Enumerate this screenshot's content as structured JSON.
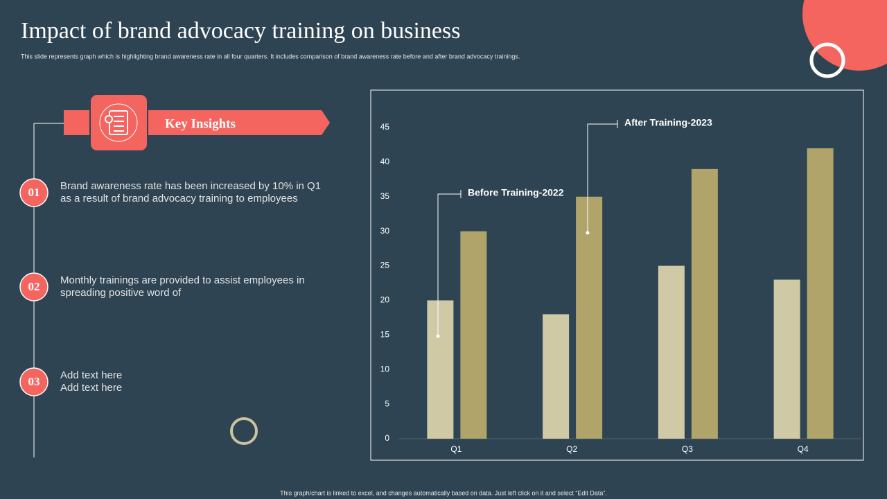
{
  "header": {
    "title": "Impact of brand advocacy training on business",
    "subtitle": "This slide represents graph which is highlighting brand awareness rate in all four quarters. It includes comparison of brand awareness rate before and after brand advocacy trainings."
  },
  "insights": {
    "heading": "Key Insights",
    "items": [
      {
        "number": "01",
        "lines": [
          "Brand awareness rate has been increased by 10% in Q1",
          "as a result of brand advocacy training to employees"
        ]
      },
      {
        "number": "02",
        "lines": [
          "Monthly trainings are provided to assist employees in",
          "spreading positive word of"
        ]
      },
      {
        "number": "03",
        "lines": [
          "Add text here",
          "Add text here"
        ]
      }
    ]
  },
  "footer": "This graph/chart is linked to excel, and changes automatically based on data. Just left click on it and select “Edit Data”.",
  "chart_data": {
    "type": "bar",
    "categories": [
      "Q1",
      "Q2",
      "Q3",
      "Q4"
    ],
    "series": [
      {
        "name": "Before Training-2022",
        "color": "#cfc9a5",
        "values": [
          20,
          18,
          25,
          23
        ]
      },
      {
        "name": "After Training-2023",
        "color": "#b0a46a",
        "values": [
          30,
          35,
          39,
          42
        ]
      }
    ],
    "ylim": [
      0,
      45
    ],
    "yticks": [
      0,
      5,
      10,
      15,
      20,
      25,
      30,
      35,
      40,
      45
    ]
  }
}
